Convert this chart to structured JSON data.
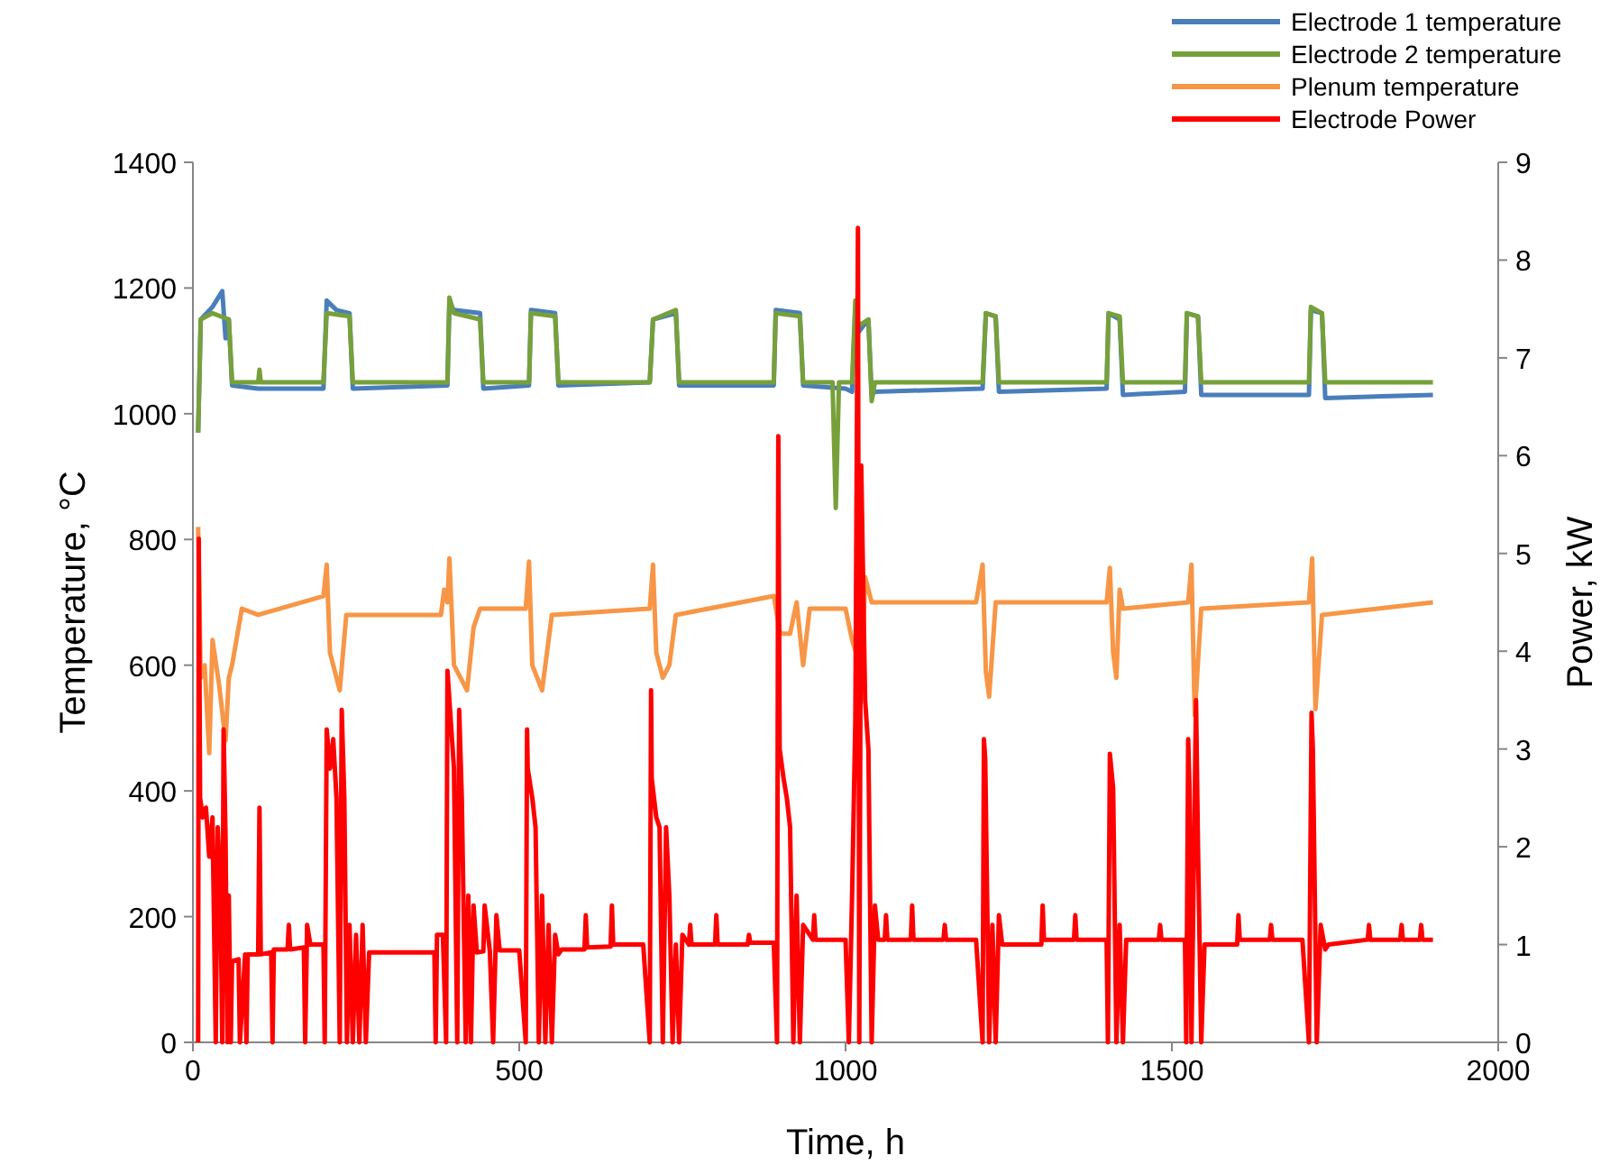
{
  "chart_data": {
    "type": "line",
    "xlabel": "Time, h",
    "ylabel": "Temperature, °C",
    "y2label": "Power, kW",
    "xlim": [
      0,
      2000
    ],
    "xticks": [
      0,
      500,
      1000,
      1500,
      2000
    ],
    "ylim": [
      0,
      1400
    ],
    "yticks": [
      0,
      200,
      400,
      600,
      800,
      1000,
      1200,
      1400
    ],
    "y2lim": [
      0,
      9
    ],
    "y2ticks": [
      0,
      1,
      2,
      3,
      4,
      5,
      6,
      7,
      8,
      9
    ],
    "legend": "top right",
    "grid": false,
    "marker": "none",
    "line_style": "solid",
    "series": [
      {
        "name": "Electrode 1 temperature",
        "color": "#4a7ebb",
        "x": [
          8,
          12,
          30,
          45,
          50,
          55,
          60,
          100,
          200,
          205,
          220,
          240,
          245,
          390,
          393,
          400,
          440,
          445,
          515,
          518,
          555,
          560,
          700,
          705,
          740,
          745,
          890,
          893,
          930,
          935,
          1000,
          1010,
          1015,
          1020,
          1035,
          1040,
          1045,
          1210,
          1215,
          1230,
          1235,
          1400,
          1403,
          1420,
          1425,
          1520,
          1523,
          1540,
          1545,
          1710,
          1713,
          1730,
          1735,
          1900
        ],
        "values": [
          970,
          1150,
          1170,
          1195,
          1120,
          1150,
          1045,
          1040,
          1040,
          1180,
          1165,
          1160,
          1040,
          1045,
          1175,
          1165,
          1160,
          1040,
          1045,
          1165,
          1160,
          1045,
          1050,
          1150,
          1160,
          1045,
          1045,
          1165,
          1160,
          1045,
          1040,
          1035,
          1170,
          1130,
          1150,
          1030,
          1035,
          1040,
          1160,
          1155,
          1035,
          1040,
          1160,
          1150,
          1030,
          1035,
          1160,
          1155,
          1030,
          1030,
          1165,
          1160,
          1025,
          1030
        ]
      },
      {
        "name": "Electrode 2 temperature",
        "color": "#77a03a",
        "x": [
          8,
          12,
          30,
          55,
          60,
          100,
          102,
          104,
          200,
          205,
          240,
          245,
          390,
          393,
          400,
          440,
          445,
          515,
          518,
          555,
          560,
          700,
          705,
          740,
          745,
          890,
          893,
          930,
          935,
          980,
          985,
          990,
          1010,
          1015,
          1020,
          1035,
          1040,
          1045,
          1210,
          1215,
          1230,
          1235,
          1400,
          1403,
          1420,
          1425,
          1520,
          1523,
          1540,
          1545,
          1710,
          1713,
          1730,
          1735,
          1900
        ],
        "values": [
          970,
          1150,
          1160,
          1150,
          1050,
          1050,
          1070,
          1050,
          1050,
          1160,
          1155,
          1050,
          1050,
          1185,
          1160,
          1150,
          1050,
          1050,
          1160,
          1155,
          1050,
          1050,
          1150,
          1165,
          1050,
          1050,
          1160,
          1155,
          1050,
          1050,
          850,
          1050,
          1050,
          1180,
          1140,
          1150,
          1020,
          1050,
          1050,
          1160,
          1155,
          1050,
          1050,
          1160,
          1155,
          1050,
          1050,
          1160,
          1155,
          1050,
          1050,
          1170,
          1160,
          1050,
          1050
        ]
      },
      {
        "name": "Plenum temperature",
        "color": "#f79646",
        "x": [
          8,
          12,
          18,
          25,
          30,
          40,
          50,
          55,
          60,
          75,
          100,
          200,
          205,
          210,
          225,
          235,
          380,
          385,
          390,
          393,
          400,
          420,
          430,
          440,
          510,
          515,
          520,
          535,
          550,
          700,
          705,
          710,
          720,
          730,
          740,
          890,
          900,
          915,
          925,
          935,
          945,
          1000,
          1010,
          1025,
          1030,
          1040,
          1200,
          1210,
          1215,
          1220,
          1230,
          1400,
          1405,
          1410,
          1415,
          1420,
          1425,
          1525,
          1530,
          1535,
          1545,
          1710,
          1715,
          1720,
          1730,
          1900
        ],
        "values": [
          820,
          580,
          600,
          460,
          640,
          570,
          480,
          580,
          600,
          690,
          680,
          710,
          760,
          620,
          560,
          680,
          680,
          720,
          700,
          770,
          600,
          560,
          660,
          690,
          690,
          765,
          600,
          560,
          680,
          690,
          760,
          620,
          580,
          600,
          680,
          710,
          650,
          650,
          700,
          600,
          690,
          690,
          640,
          590,
          740,
          700,
          700,
          760,
          590,
          550,
          700,
          700,
          755,
          620,
          580,
          720,
          690,
          700,
          760,
          520,
          690,
          700,
          770,
          530,
          680,
          700
        ]
      },
      {
        "name": "Electrode Power",
        "color": "#ff0000",
        "axis": "y2",
        "x": [
          8,
          9,
          11,
          15,
          20,
          25,
          30,
          35,
          38,
          42,
          45,
          47,
          50,
          53,
          55,
          58,
          60,
          70,
          72,
          80,
          82,
          84,
          100,
          102,
          104,
          120,
          122,
          124,
          145,
          147,
          149,
          170,
          172,
          175,
          180,
          200,
          202,
          205,
          210,
          215,
          220,
          225,
          228,
          232,
          236,
          240,
          245,
          250,
          255,
          260,
          265,
          270,
          370,
          372,
          374,
          383,
          388,
          390,
          400,
          405,
          408,
          412,
          418,
          422,
          426,
          430,
          435,
          445,
          447,
          455,
          460,
          465,
          470,
          500,
          510,
          512,
          513,
          520,
          525,
          530,
          535,
          540,
          545,
          550,
          555,
          560,
          565,
          600,
          602,
          604,
          640,
          642,
          644,
          690,
          700,
          702,
          703,
          710,
          715,
          720,
          725,
          730,
          735,
          740,
          745,
          750,
          760,
          762,
          764,
          800,
          802,
          804,
          850,
          852,
          854,
          890,
          895,
          897,
          899,
          905,
          910,
          915,
          920,
          925,
          930,
          935,
          950,
          952,
          954,
          1000,
          1005,
          1010,
          1015,
          1019,
          1021,
          1024,
          1030,
          1035,
          1040,
          1045,
          1050,
          1060,
          1062,
          1064,
          1100,
          1102,
          1104,
          1150,
          1152,
          1154,
          1200,
          1210,
          1212,
          1214,
          1220,
          1225,
          1230,
          1235,
          1240,
          1300,
          1302,
          1304,
          1350,
          1352,
          1354,
          1400,
          1402,
          1405,
          1410,
          1415,
          1420,
          1425,
          1430,
          1480,
          1482,
          1484,
          1520,
          1522,
          1525,
          1527,
          1530,
          1537,
          1540,
          1545,
          1550,
          1600,
          1602,
          1604,
          1650,
          1652,
          1654,
          1700,
          1710,
          1714,
          1716,
          1722,
          1728,
          1735,
          1740,
          1800,
          1802,
          1804,
          1850,
          1852,
          1854,
          1880,
          1882,
          1884,
          1900
        ],
        "values": [
          0,
          5.15,
          2.5,
          2.3,
          2.4,
          1.9,
          2.3,
          0,
          2.2,
          1.6,
          0,
          3.2,
          2.1,
          0,
          1.5,
          0,
          0.83,
          0.85,
          0,
          0.9,
          0,
          0.9,
          0.9,
          2.4,
          0.9,
          0.92,
          0,
          0.95,
          0.95,
          1.2,
          0.95,
          0.97,
          0,
          1.2,
          1.0,
          1.0,
          0,
          3.2,
          2.8,
          3.1,
          2.5,
          0,
          3.4,
          2.5,
          0,
          1.2,
          0,
          1.1,
          0,
          1.2,
          0,
          0.92,
          0.92,
          0,
          1.1,
          1.1,
          0,
          3.8,
          2.8,
          0,
          3.4,
          2.5,
          0,
          1.5,
          0,
          1.4,
          0.92,
          0.93,
          1.4,
          0.93,
          0,
          1.3,
          0.94,
          0.94,
          0,
          3.2,
          2.8,
          2.5,
          2.2,
          0,
          1.5,
          0,
          1.2,
          0,
          1.1,
          0.9,
          0.95,
          0.95,
          1.3,
          0.97,
          0.98,
          1.4,
          1.0,
          1.0,
          0,
          3.6,
          2.7,
          2.3,
          2.2,
          0,
          2.2,
          1.5,
          0,
          1.0,
          0,
          1.1,
          1.0,
          1.2,
          1.0,
          1.0,
          1.3,
          1.0,
          1.0,
          1.1,
          1.02,
          1.02,
          0,
          6.2,
          3.0,
          2.7,
          2.5,
          2.2,
          0,
          1.5,
          0,
          1.2,
          1.05,
          1.3,
          1.05,
          1.05,
          0,
          1.5,
          3.3,
          8.33,
          0,
          5.9,
          3.5,
          3.0,
          0,
          1.4,
          1.05,
          1.05,
          1.3,
          1.05,
          1.05,
          1.4,
          1.05,
          1.05,
          1.2,
          1.05,
          1.05,
          0,
          3.1,
          2.9,
          0,
          1.2,
          0,
          1.3,
          1.0,
          1.0,
          1.4,
          1.05,
          1.05,
          1.3,
          1.05,
          1.05,
          0,
          2.95,
          2.6,
          0,
          1.2,
          0,
          1.05,
          1.05,
          1.2,
          1.05,
          1.05,
          0,
          3.1,
          2.6,
          0,
          3.5,
          2.0,
          0,
          1.0,
          1.0,
          1.3,
          1.05,
          1.05,
          1.2,
          1.05,
          1.05,
          0,
          3.37,
          3.0,
          0,
          1.2,
          0.95,
          1.0,
          1.05,
          1.2,
          1.05,
          1.05,
          1.2,
          1.05,
          1.05,
          1.2,
          1.05,
          1.05
        ]
      }
    ]
  }
}
